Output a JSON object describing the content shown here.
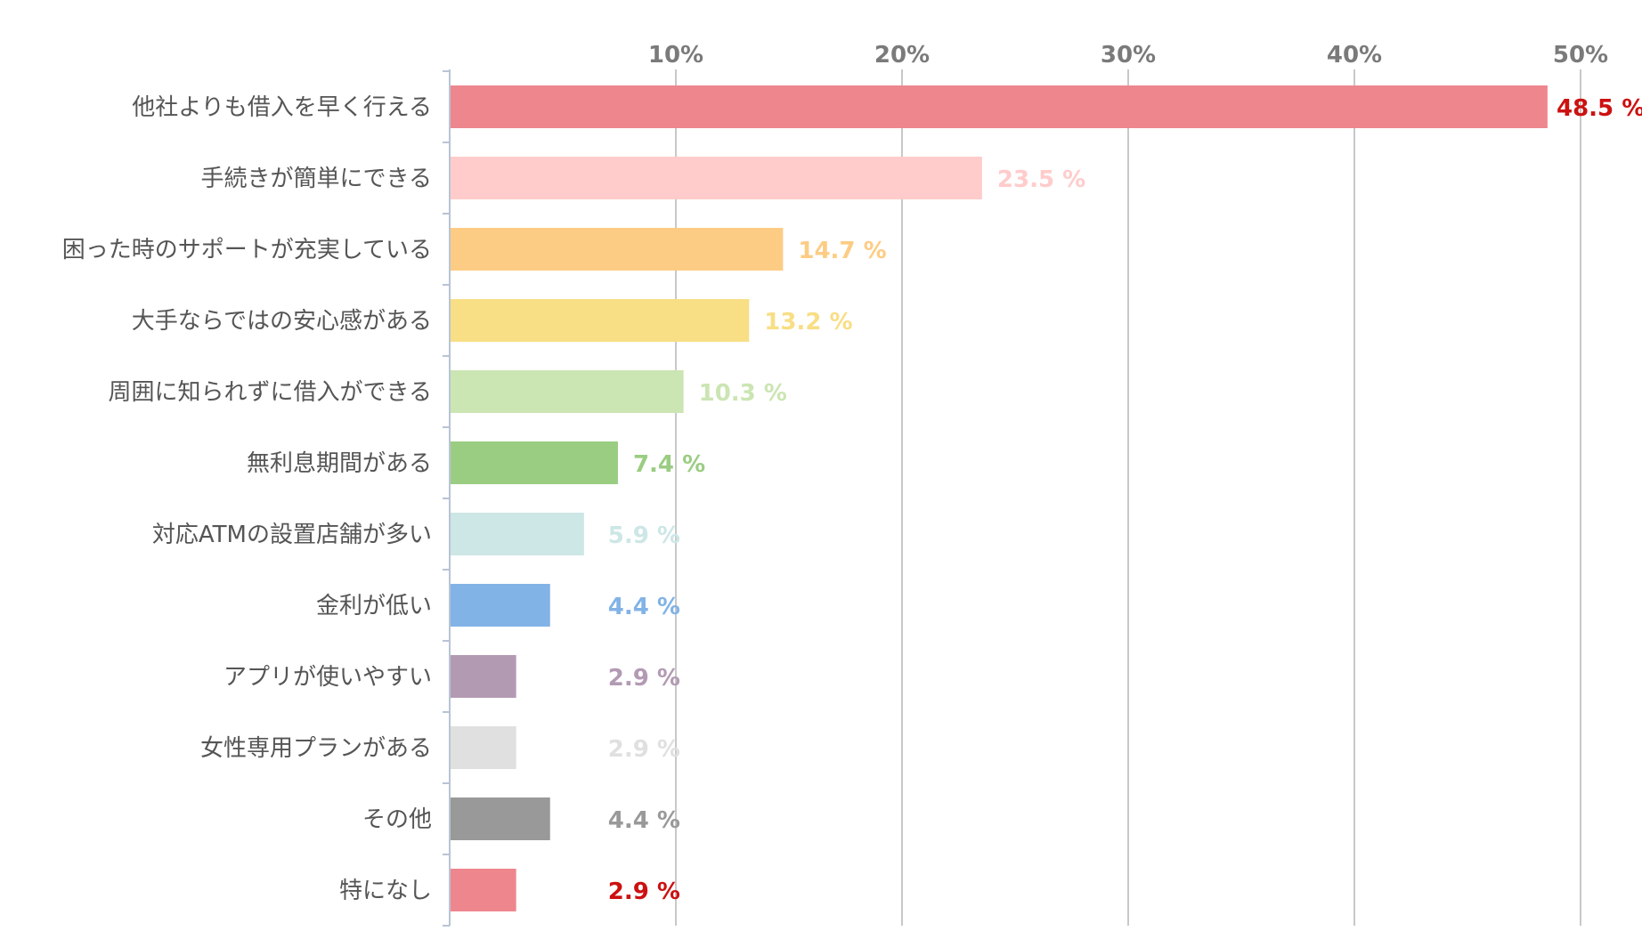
{
  "chart_data": {
    "type": "bar",
    "orientation": "horizontal",
    "title": "",
    "xlabel": "",
    "ylabel": "",
    "xlim": [
      0,
      50
    ],
    "ticks": [
      "10%",
      "20%",
      "30%",
      "40%",
      "50%"
    ],
    "tick_values": [
      10,
      20,
      30,
      40,
      50
    ],
    "grid": "vertical",
    "categories": [
      "他社よりも借入を早く行える",
      "手続きが簡単にできる",
      "困った時のサポートが充実している",
      "大手ならではの安心感がある",
      "周囲に知られずに借入ができる",
      "無利息期間がある",
      "対応ATMの設置店舗が多い",
      "金利が低い",
      "アプリが使いやすい",
      "女性専用プランがある",
      "その他",
      "特になし"
    ],
    "values": [
      48.5,
      23.5,
      14.7,
      13.2,
      10.3,
      7.4,
      5.9,
      4.4,
      2.9,
      2.9,
      4.4,
      2.9
    ],
    "value_labels": [
      "48.5 %",
      "23.5 %",
      "14.7 %",
      "13.2 %",
      "10.3 %",
      "7.4 %",
      "5.9 %",
      "4.4 %",
      "2.9 %",
      "2.9 %",
      "4.4 %",
      "2.9 %"
    ],
    "bar_colors": [
      "#ee868e",
      "#ffcccb",
      "#fdcc84",
      "#f8de85",
      "#cbe5b3",
      "#9acd82",
      "#cde6e6",
      "#82b3e6",
      "#b39ab3",
      "#e0e0e0",
      "#999999",
      "#ee868e"
    ],
    "label_colors": [
      "#cc1111",
      "#ffcccb",
      "#fdcc84",
      "#f8de85",
      "#cbe5b3",
      "#9acd82",
      "#cde6e6",
      "#82b3e6",
      "#b39ab3",
      "#e0e0e0",
      "#999999",
      "#cc1111"
    ]
  }
}
